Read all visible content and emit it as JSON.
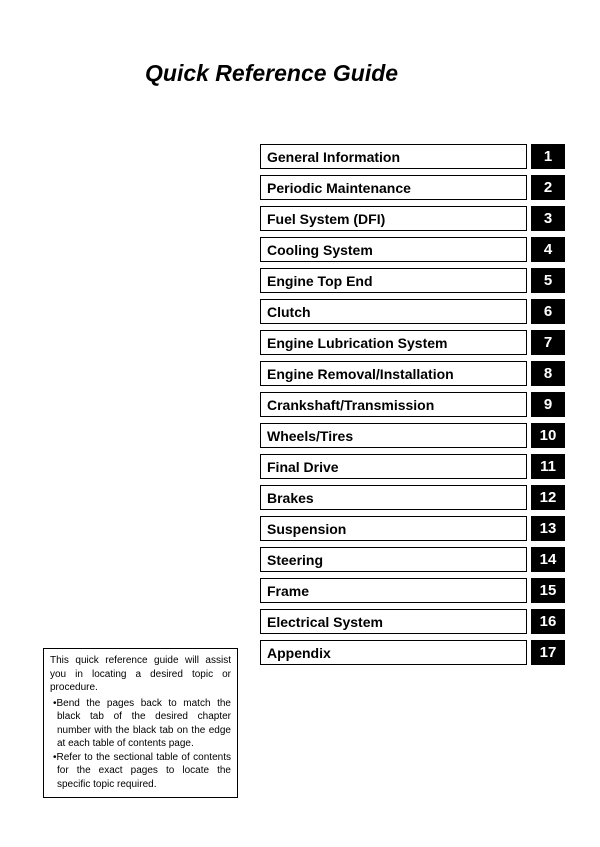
{
  "title": "Quick Reference Guide",
  "toc": [
    {
      "label": "General Information",
      "num": "1"
    },
    {
      "label": "Periodic Maintenance",
      "num": "2"
    },
    {
      "label": "Fuel System (DFI)",
      "num": "3"
    },
    {
      "label": "Cooling System",
      "num": "4"
    },
    {
      "label": "Engine Top End",
      "num": "5"
    },
    {
      "label": "Clutch",
      "num": "6"
    },
    {
      "label": "Engine Lubrication System",
      "num": "7"
    },
    {
      "label": "Engine Removal/Installation",
      "num": "8"
    },
    {
      "label": "Crankshaft/Transmission",
      "num": "9"
    },
    {
      "label": "Wheels/Tires",
      "num": "10"
    },
    {
      "label": "Final Drive",
      "num": "11"
    },
    {
      "label": "Brakes",
      "num": "12"
    },
    {
      "label": "Suspension",
      "num": "13"
    },
    {
      "label": "Steering",
      "num": "14"
    },
    {
      "label": "Frame",
      "num": "15"
    },
    {
      "label": "Electrical System",
      "num": "16"
    },
    {
      "label": "Appendix",
      "num": "17"
    }
  ],
  "note": {
    "intro": "This quick reference guide will assist you in locating a desired topic or procedure.",
    "bullets": [
      "•Bend the pages back to match the black tab of the desired chapter number with the black tab on the edge at each table of contents page.",
      "•Refer to the sectional table of contents for the exact pages to locate the specific topic required."
    ]
  },
  "style": {
    "page_bg": "#ffffff",
    "text_color": "#000000",
    "tab_bg": "#000000",
    "tab_text": "#ffffff",
    "border_color": "#000000",
    "title_fontsize": 23,
    "toc_fontsize": 14,
    "note_fontsize": 10
  }
}
